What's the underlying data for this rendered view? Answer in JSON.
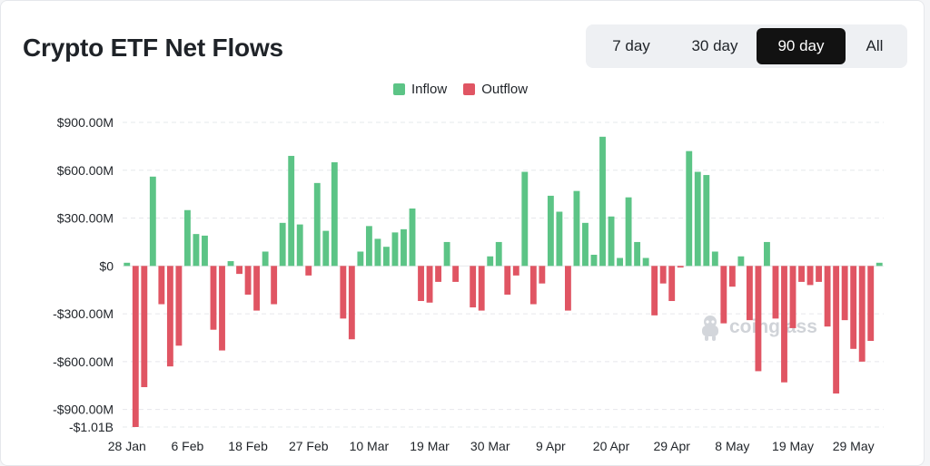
{
  "header": {
    "title": "Crypto ETF Net Flows"
  },
  "range_selector": {
    "options": [
      "7 day",
      "30 day",
      "90 day",
      "All"
    ],
    "active": "90 day"
  },
  "watermark": "coinglass",
  "colors": {
    "inflow": "#5cc486",
    "outflow": "#e05563",
    "grid": "#e6e8eb",
    "active_button": "#121212"
  },
  "chart_data": {
    "type": "bar",
    "legend": [
      {
        "name": "Inflow",
        "color": "#5cc486"
      },
      {
        "name": "Outflow",
        "color": "#e05563"
      }
    ],
    "ylim": [
      -1010,
      900
    ],
    "y_ticks": [
      {
        "value": 900,
        "label": "$900.00M"
      },
      {
        "value": 600,
        "label": "$600.00M"
      },
      {
        "value": 300,
        "label": "$300.00M"
      },
      {
        "value": 0,
        "label": "$0"
      },
      {
        "value": -300,
        "label": "-$300.00M"
      },
      {
        "value": -600,
        "label": "-$600.00M"
      },
      {
        "value": -900,
        "label": "-$900.00M"
      },
      {
        "value": -1010,
        "label": "-$1.01B"
      }
    ],
    "x_ticks": [
      {
        "index": 0,
        "label": "28 Jan"
      },
      {
        "index": 7,
        "label": "6 Feb"
      },
      {
        "index": 14,
        "label": "18 Feb"
      },
      {
        "index": 21,
        "label": "27 Feb"
      },
      {
        "index": 28,
        "label": "10 Mar"
      },
      {
        "index": 35,
        "label": "19 Mar"
      },
      {
        "index": 42,
        "label": "30 Mar"
      },
      {
        "index": 49,
        "label": "9 Apr"
      },
      {
        "index": 56,
        "label": "20 Apr"
      },
      {
        "index": 63,
        "label": "29 Apr"
      },
      {
        "index": 70,
        "label": "8 May"
      },
      {
        "index": 77,
        "label": "19 May"
      },
      {
        "index": 84,
        "label": "29 May"
      }
    ],
    "unit": "USD millions",
    "values": [
      20,
      -1010,
      -760,
      560,
      -240,
      -630,
      -500,
      350,
      200,
      190,
      -400,
      -530,
      30,
      -50,
      -180,
      -280,
      90,
      -240,
      270,
      690,
      260,
      -60,
      520,
      220,
      650,
      -330,
      -460,
      90,
      250,
      170,
      120,
      210,
      230,
      360,
      -220,
      -230,
      -100,
      150,
      -100,
      0,
      -260,
      -280,
      60,
      150,
      -180,
      -60,
      590,
      -240,
      -110,
      440,
      340,
      -280,
      470,
      270,
      70,
      810,
      310,
      50,
      430,
      150,
      50,
      -310,
      -110,
      -220,
      -10,
      720,
      590,
      570,
      90,
      -360,
      -130,
      60,
      -340,
      -660,
      150,
      -330,
      -730,
      -390,
      -100,
      -120,
      -100,
      -380,
      -800,
      -340,
      -520,
      -600,
      -470,
      20
    ]
  }
}
